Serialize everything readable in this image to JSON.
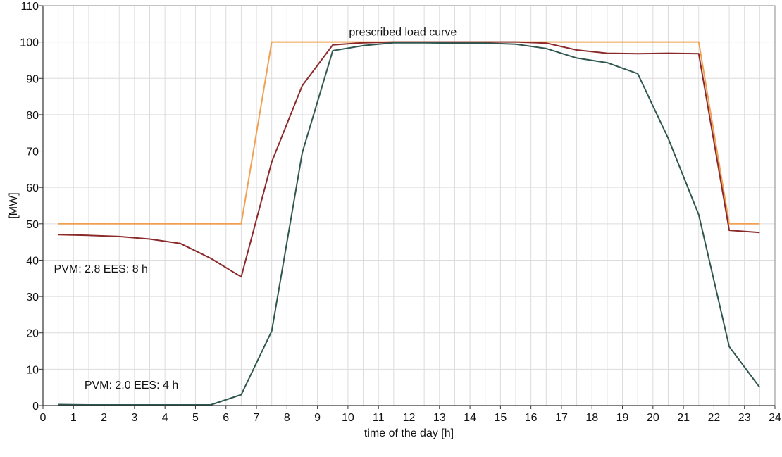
{
  "chart_data": {
    "type": "line",
    "title": "",
    "xlabel": "time of the day [h]",
    "ylabel": "[MW]",
    "xlim": [
      0,
      24
    ],
    "ylim": [
      0,
      110
    ],
    "x_ticks": [
      "0",
      "1",
      "2",
      "3",
      "4",
      "5",
      "6",
      "7",
      "8",
      "9",
      "10",
      "11",
      "12",
      "13",
      "14",
      "15",
      "16",
      "17",
      "18",
      "19",
      "20",
      "21",
      "22",
      "23",
      "24"
    ],
    "y_ticks": [
      "0",
      "10",
      "20",
      "30",
      "40",
      "50",
      "60",
      "70",
      "80",
      "90",
      "100",
      "110"
    ],
    "grid": true,
    "legend": "none",
    "colors": {
      "prescribed": "#f0a050",
      "pvm28": "#8b2a2a",
      "pvm20": "#2f5750",
      "grid": "#dcdcdc",
      "axis": "#333333"
    },
    "series": [
      {
        "name": "prescribed load curve",
        "x": [
          0.5,
          6.5,
          7.5,
          21.5,
          22.5,
          23.5
        ],
        "y": [
          50,
          50,
          100,
          100,
          50,
          50
        ]
      },
      {
        "name": "PVM: 2.8 EES: 8 h",
        "x": [
          0.5,
          1.5,
          2.5,
          3.5,
          4.5,
          5.5,
          6.5,
          7.5,
          8.5,
          9.5,
          10.5,
          11.5,
          12.5,
          13.5,
          14.5,
          15.5,
          16.5,
          17.5,
          18.5,
          19.5,
          20.5,
          21.5,
          22.5,
          23.5
        ],
        "y": [
          47,
          46.8,
          46.5,
          45.8,
          44.6,
          40.5,
          35.4,
          67,
          88,
          99.2,
          99.8,
          100,
          100,
          100,
          100,
          100,
          99.7,
          97.8,
          96.9,
          96.8,
          96.9,
          96.8,
          48.2,
          47.6
        ]
      },
      {
        "name": "PVM: 2.0 EES: 4 h",
        "x": [
          0.5,
          1.5,
          2.5,
          3.5,
          4.5,
          5.5,
          6.5,
          7.5,
          8.5,
          9.5,
          10.5,
          11.5,
          12.5,
          13.5,
          14.5,
          15.5,
          16.5,
          17.5,
          18.5,
          19.5,
          20.5,
          21.5,
          22.5,
          23.5
        ],
        "y": [
          0.3,
          0.2,
          0.2,
          0.2,
          0.2,
          0.2,
          3,
          20.5,
          69.5,
          97.6,
          99,
          99.8,
          99.8,
          99.7,
          99.7,
          99.4,
          98.2,
          95.6,
          94.3,
          91.3,
          73.5,
          52.5,
          16.2,
          5
        ]
      }
    ],
    "annotations": [
      {
        "text": "prescribed load curve",
        "x": 11.8,
        "y": 101.8
      },
      {
        "text": "PVM: 2.8 EES: 8 h",
        "x": 1.9,
        "y": 36.6
      },
      {
        "text": "PVM: 2.0 EES: 4 h",
        "x": 2.9,
        "y": 4.6
      }
    ]
  }
}
